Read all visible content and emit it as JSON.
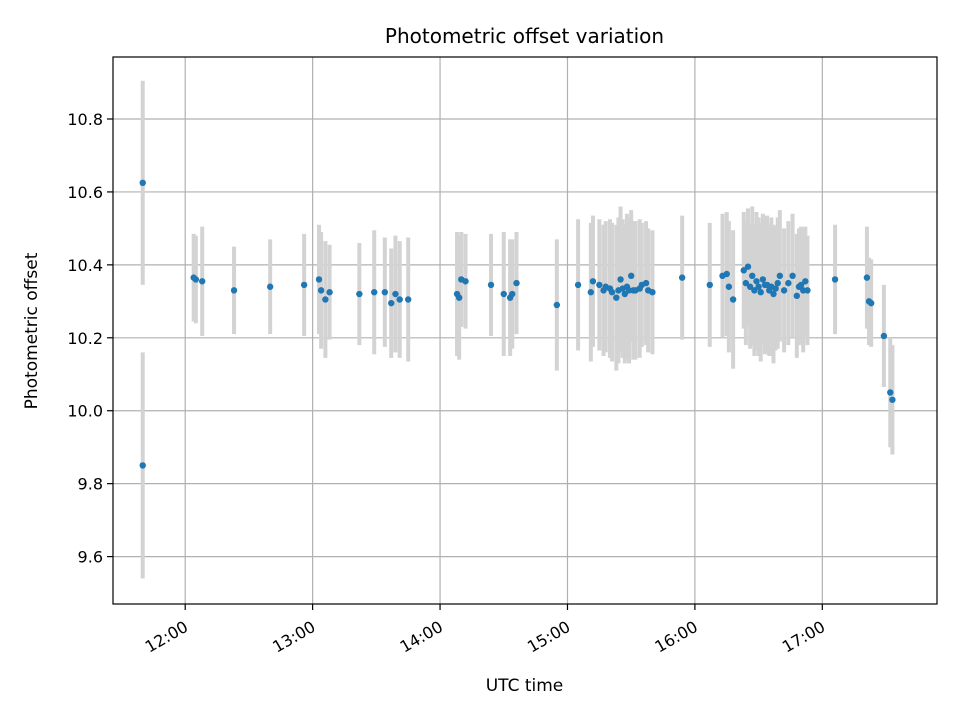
{
  "chart_data": {
    "type": "scatter",
    "title": "Photometric offset variation",
    "xlabel": "UTC time",
    "ylabel": "Photometric offset",
    "x_unit": "UTC time (hh:mm)",
    "xlim": [
      "11:26",
      "17:54"
    ],
    "ylim": [
      9.47,
      10.97
    ],
    "x_ticks": [
      "12:00",
      "13:00",
      "14:00",
      "15:00",
      "16:00",
      "17:00"
    ],
    "y_ticks": [
      "9.6",
      "9.8",
      "10.0",
      "10.2",
      "10.4",
      "10.6",
      "10.8"
    ],
    "grid": true,
    "colors": {
      "points": "#1f77b4",
      "errorbars": "#d3d3d3",
      "grid": "#b0b0b0"
    },
    "series": [
      {
        "x": [
          "11:40",
          "11:40",
          "12:04",
          "12:05",
          "12:08",
          "12:23",
          "12:40",
          "12:56",
          "13:03",
          "13:04",
          "13:06",
          "13:08",
          "13:22",
          "13:29",
          "13:34",
          "13:37",
          "13:39",
          "13:41",
          "13:45",
          "14:08",
          "14:09",
          "14:10",
          "14:12",
          "14:24",
          "14:30",
          "14:33",
          "14:34",
          "14:36",
          "14:55",
          "15:05",
          "15:11",
          "15:12",
          "15:15",
          "15:17",
          "15:18",
          "15:20",
          "15:21",
          "15:23",
          "15:24",
          "15:25",
          "15:26",
          "15:27",
          "15:28",
          "15:29",
          "15:30",
          "15:31",
          "15:32",
          "15:34",
          "15:35",
          "15:37",
          "15:38",
          "15:40",
          "15:54",
          "16:07",
          "16:13",
          "16:15",
          "16:16",
          "16:18",
          "16:23",
          "16:24",
          "16:25",
          "16:26",
          "16:27",
          "16:28",
          "16:29",
          "16:30",
          "16:31",
          "16:32",
          "16:33",
          "16:34",
          "16:35",
          "16:36",
          "16:37",
          "16:38",
          "16:39",
          "16:40",
          "16:42",
          "16:44",
          "16:46",
          "16:48",
          "16:49",
          "16:50",
          "16:51",
          "16:52",
          "16:53",
          "17:06",
          "17:21",
          "17:22",
          "17:23",
          "17:29",
          "17:32",
          "17:33"
        ],
        "y": [
          10.625,
          9.85,
          10.365,
          10.36,
          10.355,
          10.33,
          10.34,
          10.345,
          10.36,
          10.33,
          10.305,
          10.325,
          10.32,
          10.325,
          10.325,
          10.295,
          10.32,
          10.305,
          10.305,
          10.32,
          10.31,
          10.36,
          10.355,
          10.345,
          10.32,
          10.31,
          10.32,
          10.35,
          10.29,
          10.345,
          10.325,
          10.355,
          10.345,
          10.33,
          10.34,
          10.335,
          10.325,
          10.31,
          10.33,
          10.36,
          10.335,
          10.32,
          10.34,
          10.33,
          10.37,
          10.33,
          10.33,
          10.335,
          10.345,
          10.35,
          10.33,
          10.325,
          10.365,
          10.345,
          10.37,
          10.375,
          10.34,
          10.305,
          10.385,
          10.35,
          10.395,
          10.34,
          10.37,
          10.33,
          10.355,
          10.34,
          10.325,
          10.36,
          10.345,
          10.345,
          10.33,
          10.34,
          10.32,
          10.335,
          10.35,
          10.37,
          10.33,
          10.35,
          10.37,
          10.315,
          10.34,
          10.345,
          10.33,
          10.355,
          10.33,
          10.36,
          10.365,
          10.3,
          10.295,
          10.205,
          10.05,
          10.03
        ],
        "yerr": [
          0.28,
          0.31,
          0.12,
          0.12,
          0.15,
          0.12,
          0.13,
          0.14,
          0.15,
          0.16,
          0.16,
          0.13,
          0.14,
          0.17,
          0.15,
          0.15,
          0.16,
          0.16,
          0.17,
          0.17,
          0.17,
          0.13,
          0.13,
          0.14,
          0.17,
          0.16,
          0.15,
          0.14,
          0.18,
          0.18,
          0.19,
          0.18,
          0.18,
          0.18,
          0.18,
          0.19,
          0.19,
          0.2,
          0.2,
          0.2,
          0.19,
          0.19,
          0.2,
          0.2,
          0.18,
          0.19,
          0.19,
          0.19,
          0.17,
          0.17,
          0.17,
          0.17,
          0.17,
          0.17,
          0.17,
          0.17,
          0.18,
          0.19,
          0.16,
          0.17,
          0.16,
          0.17,
          0.19,
          0.18,
          0.19,
          0.19,
          0.19,
          0.18,
          0.19,
          0.19,
          0.18,
          0.19,
          0.19,
          0.17,
          0.18,
          0.18,
          0.17,
          0.17,
          0.17,
          0.17,
          0.16,
          0.16,
          0.17,
          0.15,
          0.15,
          0.15,
          0.14,
          0.12,
          0.12,
          0.14,
          0.15,
          0.15
        ]
      }
    ]
  }
}
